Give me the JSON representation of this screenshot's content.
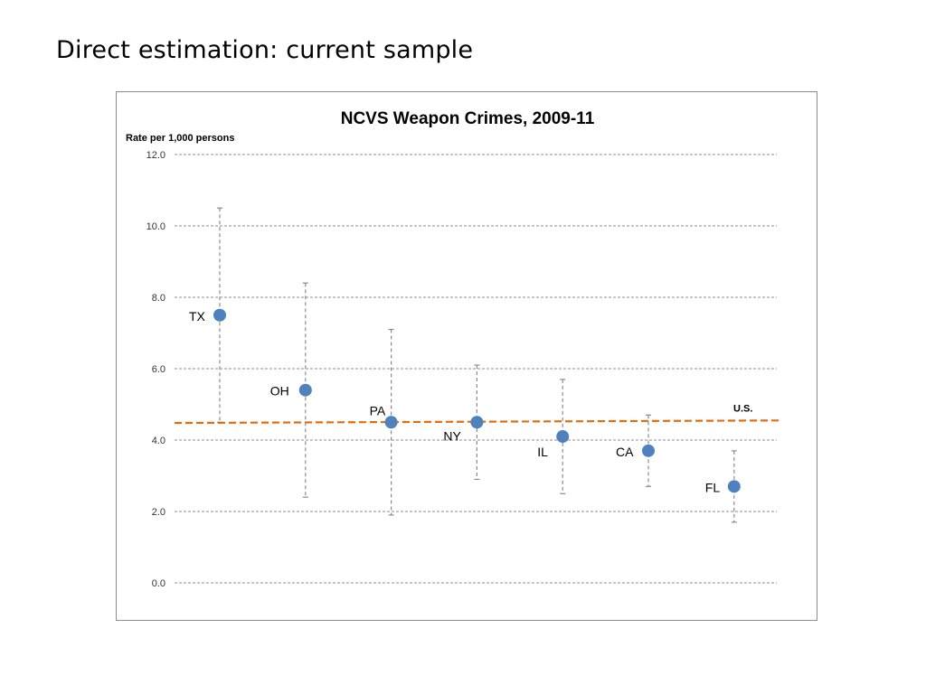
{
  "slide": {
    "title": "Direct estimation: current sample"
  },
  "chart_data": {
    "type": "scatter",
    "title": "NCVS Weapon Crimes, 2009-11",
    "ylabel": "Rate per 1,000 persons",
    "xlabel": "",
    "ylim": [
      0,
      12
    ],
    "yticks": [
      "0.0",
      "2.0",
      "4.0",
      "6.0",
      "8.0",
      "10.0",
      "12.0"
    ],
    "grid": true,
    "categories": [
      "TX",
      "OH",
      "PA",
      "NY",
      "IL",
      "CA",
      "FL"
    ],
    "values": [
      7.5,
      5.4,
      4.5,
      4.5,
      4.1,
      3.7,
      2.7
    ],
    "error_low": [
      4.5,
      2.4,
      1.9,
      2.9,
      2.5,
      2.7,
      1.7
    ],
    "error_high": [
      10.5,
      8.4,
      7.1,
      6.1,
      5.7,
      4.7,
      3.7
    ],
    "reference_line": {
      "label": "U.S.",
      "start": 4.48,
      "end": 4.55
    },
    "colors": {
      "points": "#4f81bd",
      "reference": "#e46c0a",
      "errorbars": "#8c8c8c",
      "grid": "#8c8c8c"
    }
  }
}
